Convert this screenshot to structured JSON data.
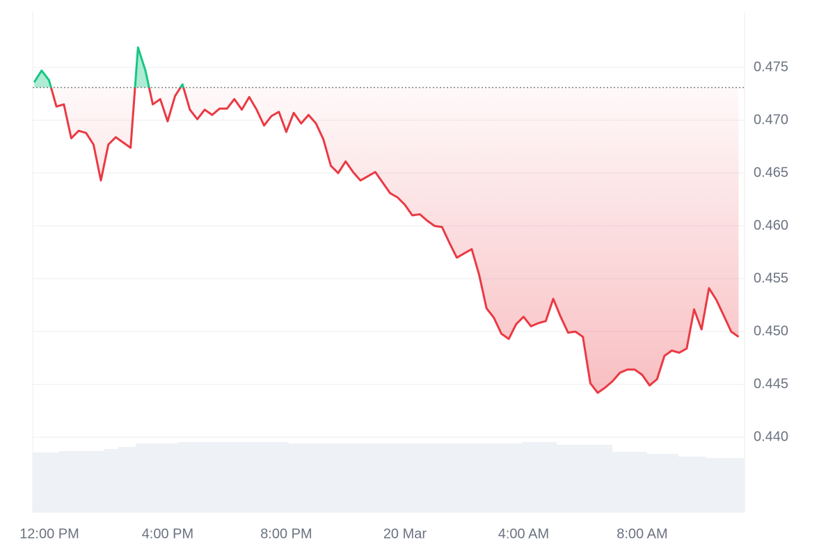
{
  "chart_data": {
    "type": "line",
    "x": [
      -0.5,
      -0.25,
      0,
      0.25,
      0.5,
      0.75,
      1,
      1.25,
      1.5,
      1.75,
      2,
      2.25,
      2.5,
      2.75,
      3,
      3.25,
      3.5,
      3.75,
      4,
      4.25,
      4.5,
      4.75,
      5,
      5.25,
      5.5,
      5.75,
      6,
      6.25,
      6.5,
      6.75,
      7,
      7.25,
      7.5,
      7.75,
      8,
      8.25,
      8.5,
      8.75,
      9,
      9.25,
      9.5,
      9.75,
      10,
      10.25,
      10.5,
      10.75,
      11,
      11.25,
      11.5,
      11.75,
      12,
      12.25,
      12.5,
      12.75,
      13,
      13.25,
      13.5,
      13.75,
      14,
      14.25,
      14.5,
      14.75,
      15,
      15.25,
      15.5,
      15.75,
      16,
      16.25,
      16.5,
      16.75,
      17,
      17.25,
      17.5,
      17.75,
      18,
      18.25,
      18.5,
      18.75,
      19,
      19.25,
      19.5,
      19.75,
      20,
      20.25,
      20.5,
      20.75,
      21,
      21.25,
      21.5,
      21.75,
      22,
      22.25,
      22.5,
      22.75,
      23,
      23.25
    ],
    "values": [
      0.4736,
      0.4747,
      0.4738,
      0.4713,
      0.4715,
      0.4683,
      0.469,
      0.4688,
      0.4677,
      0.4643,
      0.4677,
      0.4684,
      0.4679,
      0.4674,
      0.4769,
      0.4747,
      0.4715,
      0.472,
      0.4699,
      0.4723,
      0.4734,
      0.471,
      0.4701,
      0.471,
      0.4705,
      0.4711,
      0.4711,
      0.472,
      0.471,
      0.4722,
      0.471,
      0.4695,
      0.4704,
      0.4708,
      0.4689,
      0.4707,
      0.4697,
      0.4705,
      0.4697,
      0.4682,
      0.4657,
      0.465,
      0.4661,
      0.4651,
      0.4643,
      0.4647,
      0.4651,
      0.4641,
      0.4631,
      0.4627,
      0.462,
      0.461,
      0.4611,
      0.4605,
      0.46,
      0.4599,
      0.4584,
      0.457,
      0.4574,
      0.4578,
      0.4554,
      0.4522,
      0.4513,
      0.4498,
      0.4493,
      0.4507,
      0.4514,
      0.4505,
      0.4508,
      0.451,
      0.4531,
      0.4514,
      0.4499,
      0.45,
      0.4495,
      0.4451,
      0.4442,
      0.4447,
      0.4453,
      0.4461,
      0.4464,
      0.4464,
      0.4459,
      0.4449,
      0.4455,
      0.4477,
      0.4482,
      0.448,
      0.4484,
      0.4521,
      0.4502,
      0.4541,
      0.453,
      0.4515,
      0.45,
      0.4495
    ],
    "reference_line": 0.4731,
    "up_color": "#16c784",
    "down_color": "#ea3943",
    "xlim": [
      -0.55,
      23.45
    ],
    "xticks": [
      {
        "value": 0,
        "label": "12:00 PM"
      },
      {
        "value": 4,
        "label": "4:00 PM"
      },
      {
        "value": 8,
        "label": "8:00 PM"
      },
      {
        "value": 12,
        "label": "20 Mar"
      },
      {
        "value": 16,
        "label": "4:00 AM"
      },
      {
        "value": 20,
        "label": "8:00 AM"
      }
    ],
    "ylim": [
      0.4329,
      0.4802
    ],
    "yticks": [
      {
        "value": 0.44,
        "label": "0.440"
      },
      0.445,
      {
        "value": 0.45,
        "label": "0.450"
      },
      0.455,
      {
        "value": 0.46,
        "label": "0.460"
      },
      0.465,
      {
        "value": 0.47,
        "label": "0.470"
      },
      0.475
    ],
    "grid": true
  }
}
